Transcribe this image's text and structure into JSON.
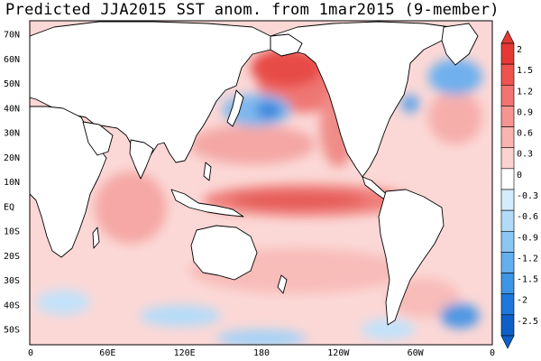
{
  "title": "Predicted JJA2015 SST anom. from 1mar2015 (9-member)",
  "latitude_labels": [
    "70N",
    "60N",
    "50N",
    "40N",
    "30N",
    "20N",
    "10N",
    "EQ",
    "10S",
    "20S",
    "30S",
    "40S",
    "50S"
  ],
  "longitude_labels": [
    "0",
    "60E",
    "120E",
    "180",
    "120W",
    "60W",
    "0"
  ],
  "colorbar": {
    "labels": [
      "2",
      "1.5",
      "1.2",
      "0.9",
      "0.6",
      "0.3",
      "0",
      "-0.3",
      "-0.6",
      "-0.9",
      "-1.2",
      "-1.5",
      "-2",
      "-2.5"
    ],
    "colors": [
      "#e53935",
      "#ef5350",
      "#f27372",
      "#f59491",
      "#f8b4b1",
      "#fbd2cf",
      "#ffffff",
      "#d5ecfc",
      "#b3dbf8",
      "#8cc6f3",
      "#64afee",
      "#3d95e6",
      "#1e78dc",
      "#0f5fc8"
    ]
  },
  "map": {
    "ocean_base_color": "#fbd8d6",
    "land_color": "#ffffff",
    "coast_color": "#000000"
  },
  "chart_data": {
    "type": "heatmap",
    "title": "Predicted JJA2015 SST anom. from 1mar2015 (9-member)",
    "x_ticks": [
      "0",
      "60E",
      "120E",
      "180",
      "120W",
      "60W",
      "0"
    ],
    "y_ticks": [
      "70N",
      "60N",
      "50N",
      "40N",
      "30N",
      "20N",
      "10N",
      "EQ",
      "10S",
      "20S",
      "30S",
      "40S",
      "50S"
    ],
    "color_scale": [
      "2",
      "1.5",
      "1.2",
      "0.9",
      "0.6",
      "0.3",
      "0",
      "-0.3",
      "-0.6",
      "-0.9",
      "-1.2",
      "-1.5",
      "-2",
      "-2.5"
    ]
  }
}
